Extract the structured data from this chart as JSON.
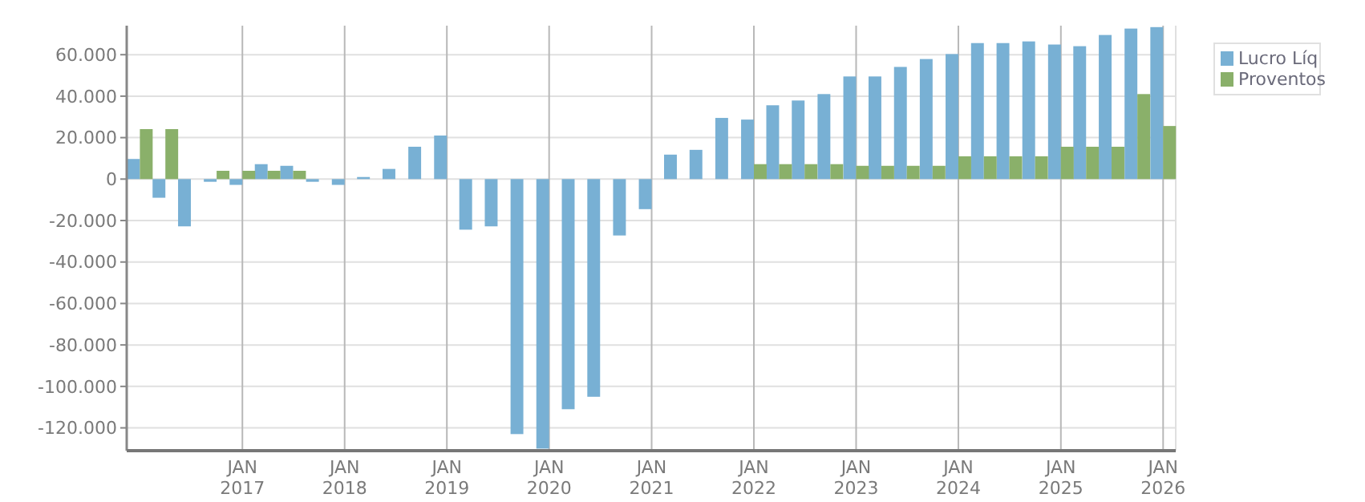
{
  "chart_data": {
    "type": "bar",
    "x": [
      "2016-01",
      "2016-04",
      "2016-07",
      "2016-10",
      "2017-01",
      "2017-04",
      "2017-07",
      "2017-10",
      "2018-01",
      "2018-04",
      "2018-07",
      "2018-10",
      "2019-01",
      "2019-04",
      "2019-07",
      "2019-10",
      "2020-01",
      "2020-04",
      "2020-07",
      "2020-10",
      "2021-01",
      "2021-04",
      "2021-07",
      "2021-10",
      "2022-01",
      "2022-04",
      "2022-07",
      "2022-10",
      "2023-01",
      "2023-04",
      "2023-07",
      "2023-10",
      "2024-01",
      "2024-04",
      "2024-07",
      "2024-10",
      "2025-01",
      "2025-04",
      "2025-07",
      "2025-10",
      "2026-01"
    ],
    "series": [
      {
        "name": "Lucro Líq",
        "color": "#78b0d4",
        "values": [
          9700,
          -9000,
          -22800,
          -1300,
          -2800,
          7200,
          6400,
          -1300,
          -2800,
          1000,
          4900,
          15600,
          21000,
          -24400,
          -22800,
          -123000,
          -130000,
          -111000,
          -105000,
          -27200,
          -14500,
          11800,
          14100,
          29500,
          28700,
          35600,
          37900,
          41000,
          49500,
          49500,
          54100,
          57900,
          60300,
          65600,
          65600,
          66400,
          64900,
          64100,
          69500,
          72600,
          73300
        ]
      },
      {
        "name": "Proventos",
        "color": "#8ab06a",
        "values": [
          24100,
          24100,
          0,
          4000,
          4000,
          4000,
          4000,
          0,
          0,
          0,
          0,
          0,
          0,
          0,
          0,
          0,
          0,
          0,
          0,
          0,
          0,
          0,
          0,
          0,
          7200,
          7200,
          7200,
          7200,
          6400,
          6400,
          6400,
          6400,
          11000,
          11000,
          11000,
          11000,
          15600,
          15600,
          15600,
          41000,
          25600
        ]
      }
    ],
    "xlim": [
      "2015-11-15",
      "2026-02-15"
    ],
    "xticks": [
      {
        "value": "2017-01",
        "label": "JAN 2017"
      },
      {
        "value": "2018-01",
        "label": "JAN 2018"
      },
      {
        "value": "2019-01",
        "label": "JAN 2019"
      },
      {
        "value": "2020-01",
        "label": "JAN 2020"
      },
      {
        "value": "2021-01",
        "label": "JAN 2021"
      },
      {
        "value": "2022-01",
        "label": "JAN 2022"
      },
      {
        "value": "2023-01",
        "label": "JAN 2023"
      },
      {
        "value": "2024-01",
        "label": "JAN 2024"
      },
      {
        "value": "2025-01",
        "label": "JAN 2025"
      },
      {
        "value": "2026-01",
        "label": "JAN 2026"
      }
    ],
    "ylim": [
      -131000,
      74000
    ],
    "yticks": [
      {
        "value": -120000,
        "label": "-120.000"
      },
      {
        "value": -100000,
        "label": "-100.000"
      },
      {
        "value": -80000,
        "label": "-80.000"
      },
      {
        "value": -60000,
        "label": "-60.000"
      },
      {
        "value": -40000,
        "label": "-40.000"
      },
      {
        "value": -20000,
        "label": "-20.000"
      },
      0,
      {
        "value": 20000,
        "label": "20.000"
      },
      {
        "value": 40000,
        "label": "40.000"
      },
      {
        "value": 60000,
        "label": "60.000"
      }
    ],
    "grid": true,
    "legend": "top right"
  }
}
